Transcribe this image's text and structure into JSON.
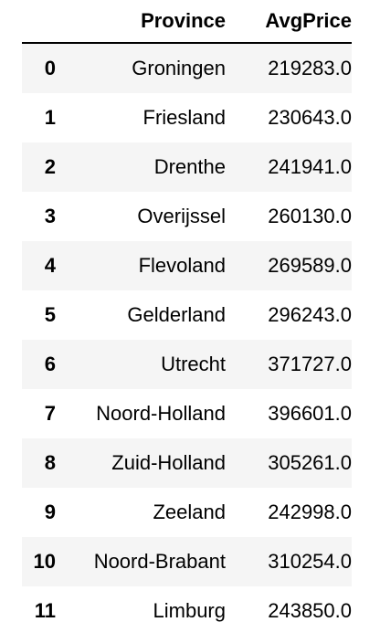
{
  "table": {
    "columns": [
      "Province",
      "AvgPrice"
    ],
    "rows": [
      {
        "index": "0",
        "province": "Groningen",
        "avg_price": "219283.0"
      },
      {
        "index": "1",
        "province": "Friesland",
        "avg_price": "230643.0"
      },
      {
        "index": "2",
        "province": "Drenthe",
        "avg_price": "241941.0"
      },
      {
        "index": "3",
        "province": "Overijssel",
        "avg_price": "260130.0"
      },
      {
        "index": "4",
        "province": "Flevoland",
        "avg_price": "269589.0"
      },
      {
        "index": "5",
        "province": "Gelderland",
        "avg_price": "296243.0"
      },
      {
        "index": "6",
        "province": "Utrecht",
        "avg_price": "371727.0"
      },
      {
        "index": "7",
        "province": "Noord-Holland",
        "avg_price": "396601.0"
      },
      {
        "index": "8",
        "province": "Zuid-Holland",
        "avg_price": "305261.0"
      },
      {
        "index": "9",
        "province": "Zeeland",
        "avg_price": "242998.0"
      },
      {
        "index": "10",
        "province": "Noord-Brabant",
        "avg_price": "310254.0"
      },
      {
        "index": "11",
        "province": "Limburg",
        "avg_price": "243850.0"
      }
    ]
  }
}
